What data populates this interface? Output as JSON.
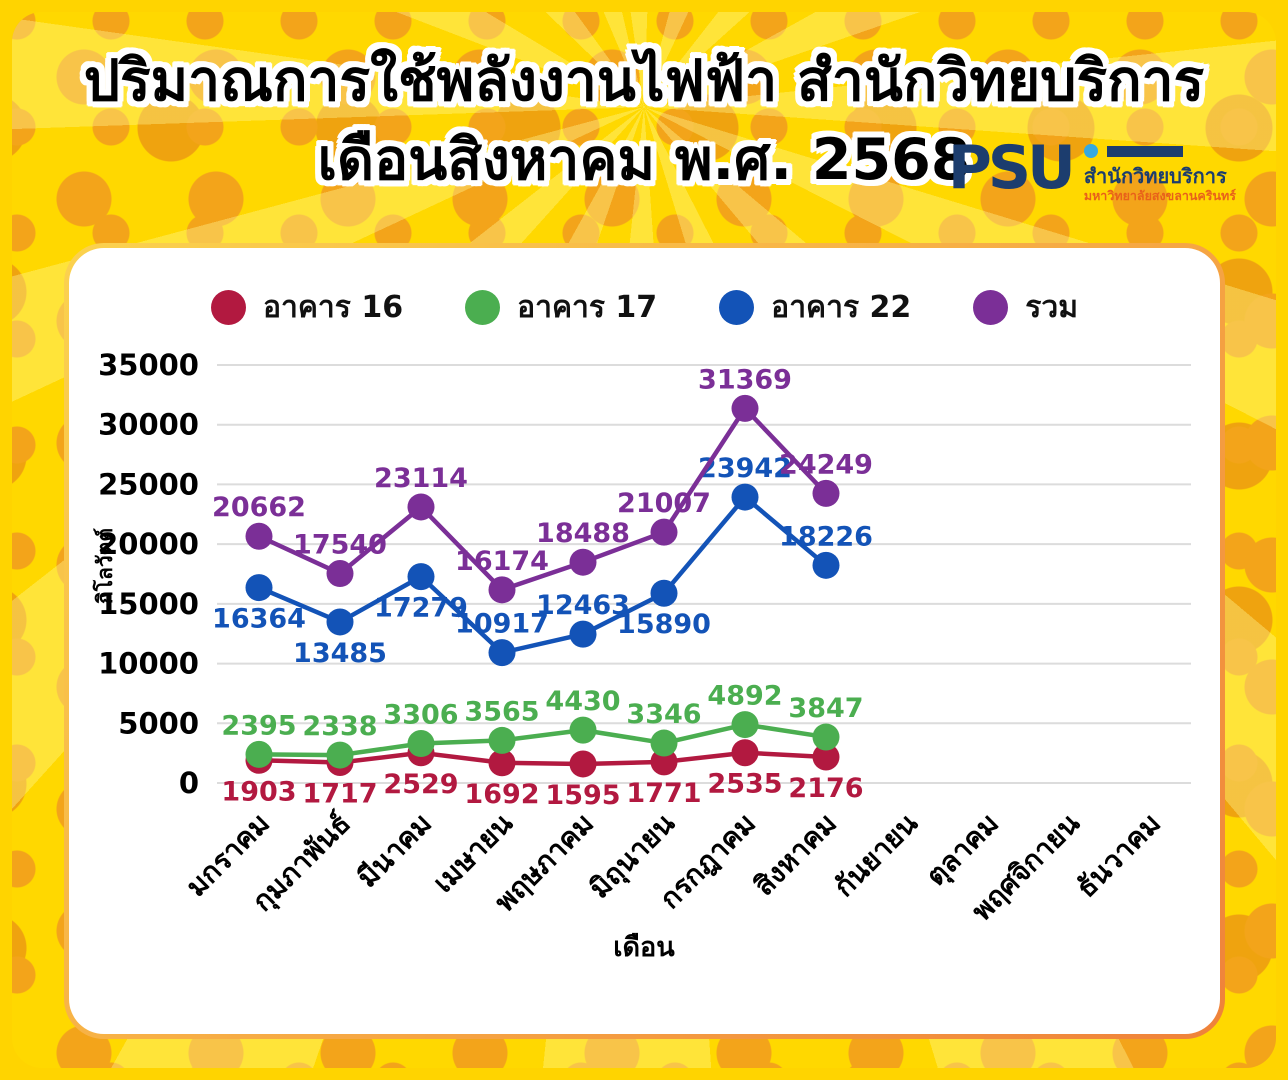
{
  "title": {
    "line1": "ปริมาณการใช้พลังงานไฟฟ้า สำนักวิทยบริการ",
    "line2": "เดือนสิงหาคม พ.ศ. 2568"
  },
  "logo": {
    "acronym": "PSU",
    "org": "สำนักวิทยบริการ",
    "university": "มหาวิทยาลัยสงขลานครินทร์"
  },
  "chart_data": {
    "type": "line",
    "xlabel": "เดือน",
    "ylabel": "กิโลวัตต์",
    "categories": [
      "มกราคม",
      "กุมภาพันธ์",
      "มีนาคม",
      "เมษายน",
      "พฤษภาคม",
      "มิถุนายน",
      "กรกฎาคม",
      "สิงหาคม",
      "กันยายน",
      "ตุลาคม",
      "พฤศจิกายน",
      "ธันวาคม"
    ],
    "ylim": [
      0,
      35000
    ],
    "yticks": [
      0,
      5000,
      10000,
      15000,
      20000,
      25000,
      30000,
      35000
    ],
    "grid": "horizontal",
    "legend_position": "top",
    "series": [
      {
        "name": "อาคาร 16",
        "color": "#B21940",
        "values": [
          1903,
          1717,
          2529,
          1692,
          1595,
          1771,
          2535,
          2176
        ],
        "label_sides": [
          "below",
          "below",
          "below",
          "below",
          "below",
          "below",
          "below",
          "below"
        ]
      },
      {
        "name": "อาคาร 17",
        "color": "#4BAE50",
        "values": [
          2395,
          2338,
          3306,
          3565,
          4430,
          3346,
          4892,
          3847
        ],
        "label_sides": [
          "above",
          "above",
          "above",
          "above",
          "above",
          "above",
          "above",
          "above"
        ]
      },
      {
        "name": "อาคาร 22",
        "color": "#1353B7",
        "values": [
          16364,
          13485,
          17279,
          10917,
          12463,
          15890,
          23942,
          18226
        ],
        "label_sides": [
          "below",
          "below",
          "below",
          "above",
          "above",
          "below",
          "above",
          "above"
        ]
      },
      {
        "name": "รวม",
        "color": "#7B2F97",
        "values": [
          20662,
          17540,
          23114,
          16174,
          18488,
          21007,
          31369,
          24249
        ],
        "label_sides": [
          "above",
          "above",
          "above",
          "above",
          "above",
          "above",
          "above",
          "above"
        ]
      }
    ]
  }
}
